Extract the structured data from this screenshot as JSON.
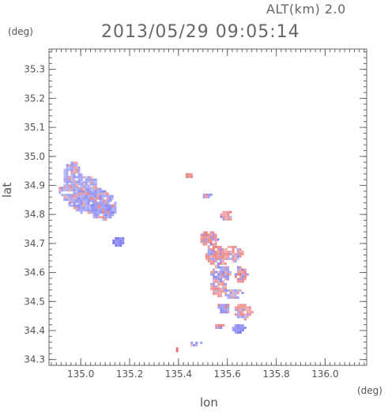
{
  "header": {
    "alt_label": "ALT(km) 2.0",
    "timestamp": "2013/05/29 09:05:14"
  },
  "chart_data": {
    "type": "heatmap",
    "title": "2013/05/29 09:05:14",
    "xlabel": "lon",
    "ylabel": "lat",
    "x_unit": "(deg)",
    "y_unit": "(deg)",
    "xlim": [
      134.87,
      136.17
    ],
    "ylim": [
      34.28,
      35.37
    ],
    "x_ticks": [
      "135.0",
      "135.2",
      "135.4",
      "135.6",
      "135.8",
      "136.0"
    ],
    "y_ticks": [
      "34.3",
      "34.4",
      "34.5",
      "34.6",
      "34.7",
      "34.8",
      "34.9",
      "35.0",
      "35.1",
      "35.2",
      "35.3"
    ],
    "grid": false,
    "colors": {
      "positive": "#ee8a8a",
      "negative": "#9a9af0",
      "neutral": "#d6d6f6"
    },
    "regions": [
      {
        "lon": 134.96,
        "lat": 34.94,
        "dlon": 0.04,
        "dlat": 0.05,
        "v": -0.4
      },
      {
        "lon": 134.98,
        "lat": 34.88,
        "dlon": 0.08,
        "dlat": 0.04,
        "v": -0.45
      },
      {
        "lon": 135.04,
        "lat": 34.85,
        "dlon": 0.1,
        "dlat": 0.05,
        "v": -0.5
      },
      {
        "lon": 135.09,
        "lat": 34.82,
        "dlon": 0.06,
        "dlat": 0.04,
        "v": -0.55
      },
      {
        "lon": 135.02,
        "lat": 34.91,
        "dlon": 0.05,
        "dlat": 0.03,
        "v": -0.35
      },
      {
        "lon": 135.15,
        "lat": 34.71,
        "dlon": 0.03,
        "dlat": 0.02,
        "v": -0.8
      },
      {
        "lon": 135.44,
        "lat": 34.94,
        "dlon": 0.02,
        "dlat": 0.01,
        "v": 0.7
      },
      {
        "lon": 135.51,
        "lat": 34.87,
        "dlon": 0.02,
        "dlat": 0.01,
        "v": -0.6
      },
      {
        "lon": 135.59,
        "lat": 34.8,
        "dlon": 0.03,
        "dlat": 0.02,
        "v": 0.5
      },
      {
        "lon": 135.52,
        "lat": 34.72,
        "dlon": 0.04,
        "dlat": 0.03,
        "v": 0.6
      },
      {
        "lon": 135.55,
        "lat": 34.66,
        "dlon": 0.05,
        "dlat": 0.04,
        "v": 0.55
      },
      {
        "lon": 135.62,
        "lat": 34.67,
        "dlon": 0.04,
        "dlat": 0.03,
        "v": 0.45
      },
      {
        "lon": 135.57,
        "lat": 34.6,
        "dlon": 0.05,
        "dlat": 0.03,
        "v": -0.5
      },
      {
        "lon": 135.65,
        "lat": 34.6,
        "dlon": 0.03,
        "dlat": 0.03,
        "v": 0.6
      },
      {
        "lon": 135.56,
        "lat": 34.55,
        "dlon": 0.04,
        "dlat": 0.03,
        "v": 0.4
      },
      {
        "lon": 135.62,
        "lat": 34.53,
        "dlon": 0.04,
        "dlat": 0.02,
        "v": -0.45
      },
      {
        "lon": 135.58,
        "lat": 34.48,
        "dlon": 0.03,
        "dlat": 0.02,
        "v": -0.6
      },
      {
        "lon": 135.66,
        "lat": 34.47,
        "dlon": 0.04,
        "dlat": 0.03,
        "v": 0.5
      },
      {
        "lon": 135.64,
        "lat": 34.41,
        "dlon": 0.03,
        "dlat": 0.02,
        "v": -0.7
      },
      {
        "lon": 135.56,
        "lat": 34.42,
        "dlon": 0.02,
        "dlat": 0.01,
        "v": -0.6
      },
      {
        "lon": 135.39,
        "lat": 34.34,
        "dlon": 0.01,
        "dlat": 0.01,
        "v": 0.9
      },
      {
        "lon": 135.46,
        "lat": 34.36,
        "dlon": 0.03,
        "dlat": 0.01,
        "v": -0.4
      }
    ]
  }
}
